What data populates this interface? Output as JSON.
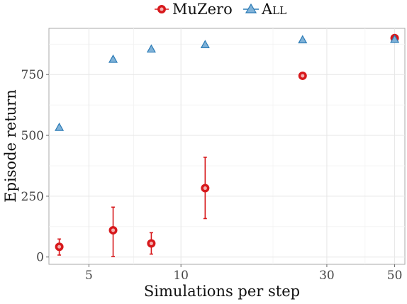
{
  "chart_data": {
    "type": "scatter",
    "title": "",
    "xlabel": "Simulations per step",
    "ylabel": "Episode return",
    "x_scale": "log",
    "xlim": [
      3.7,
      54
    ],
    "ylim": [
      -30,
      940
    ],
    "x_ticks": [
      5,
      10,
      30,
      50
    ],
    "y_ticks": [
      0,
      250,
      500,
      750
    ],
    "grid": true,
    "legend_position": "top",
    "series": [
      {
        "name": "MuZero",
        "marker": "circle",
        "color": "#d7191c",
        "points": [
          {
            "x": 4,
            "y": 42,
            "lo": 8,
            "hi": 74
          },
          {
            "x": 6,
            "y": 110,
            "lo": 2,
            "hi": 205
          },
          {
            "x": 8,
            "y": 56,
            "lo": 12,
            "hi": 100
          },
          {
            "x": 12,
            "y": 283,
            "lo": 158,
            "hi": 410
          },
          {
            "x": 25,
            "y": 745
          },
          {
            "x": 50,
            "y": 900
          }
        ]
      },
      {
        "name": "All",
        "marker": "triangle",
        "color": "#2c7bb6",
        "points": [
          {
            "x": 4,
            "y": 533
          },
          {
            "x": 6,
            "y": 813
          },
          {
            "x": 8,
            "y": 855
          },
          {
            "x": 12,
            "y": 873
          },
          {
            "x": 25,
            "y": 893
          },
          {
            "x": 50,
            "y": 895
          }
        ]
      }
    ]
  }
}
